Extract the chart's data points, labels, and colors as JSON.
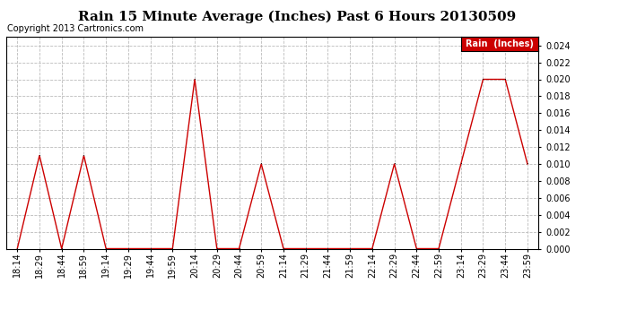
{
  "title": "Rain 15 Minute Average (Inches) Past 6 Hours 20130509",
  "copyright": "Copyright 2013 Cartronics.com",
  "legend_label": "Rain  (Inches)",
  "x_labels": [
    "18:14",
    "18:29",
    "18:44",
    "18:59",
    "19:14",
    "19:29",
    "19:44",
    "19:59",
    "20:14",
    "20:29",
    "20:44",
    "20:59",
    "21:14",
    "21:29",
    "21:44",
    "21:59",
    "22:14",
    "22:29",
    "22:44",
    "22:59",
    "23:14",
    "23:29",
    "23:44",
    "23:59"
  ],
  "y_values": [
    0.0,
    0.011,
    0.0,
    0.011,
    0.0,
    0.0,
    0.0,
    0.0,
    0.02,
    0.0,
    0.0,
    0.01,
    0.0,
    0.0,
    0.0,
    0.0,
    0.0,
    0.01,
    0.0,
    0.0,
    0.01,
    0.02,
    0.02,
    0.01
  ],
  "ylim": [
    0.0,
    0.025
  ],
  "yticks": [
    0.0,
    0.002,
    0.004,
    0.006,
    0.008,
    0.01,
    0.012,
    0.014,
    0.016,
    0.018,
    0.02,
    0.022,
    0.024
  ],
  "line_color": "#cc0000",
  "marker_color": "#222222",
  "legend_bg": "#cc0000",
  "legend_text_color": "white",
  "title_fontsize": 11,
  "copyright_fontsize": 7,
  "tick_fontsize": 7,
  "ytick_fontsize": 7,
  "bg_color": "white",
  "grid_color": "#bbbbbb"
}
